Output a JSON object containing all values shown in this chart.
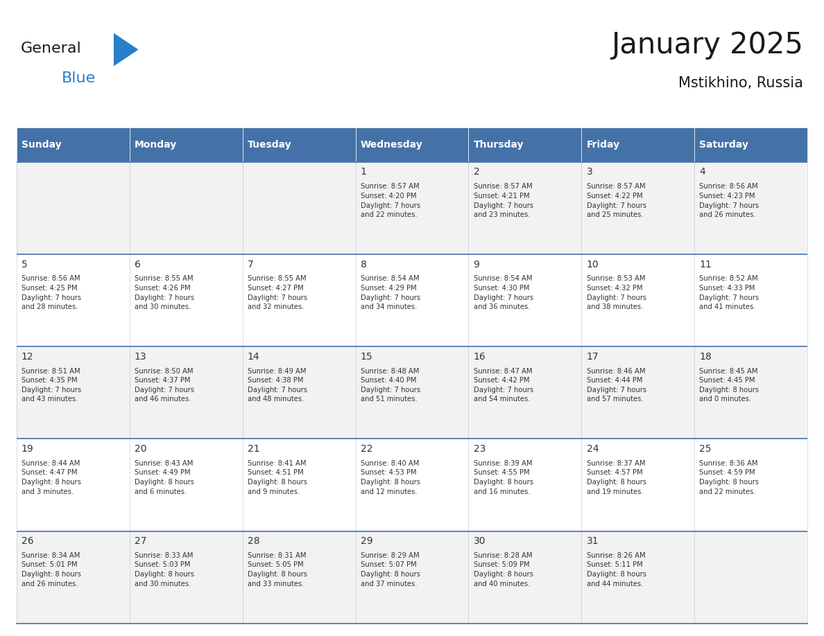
{
  "title": "January 2025",
  "subtitle": "Mstikhino, Russia",
  "days_of_week": [
    "Sunday",
    "Monday",
    "Tuesday",
    "Wednesday",
    "Thursday",
    "Friday",
    "Saturday"
  ],
  "header_bg_color": "#4472a8",
  "header_text_color": "#ffffff",
  "cell_bg_color_odd": "#f2f2f2",
  "cell_bg_color_even": "#ffffff",
  "cell_border_color": "#4472a8",
  "day_number_color": "#333333",
  "cell_text_color": "#333333",
  "title_color": "#1a1a1a",
  "subtitle_color": "#1a1a1a",
  "logo_general_color": "#1a1a1a",
  "logo_blue_color": "#2a7fc9",
  "weeks": [
    {
      "days": [
        {
          "date": null,
          "sunrise": null,
          "sunset": null,
          "daylight": null
        },
        {
          "date": null,
          "sunrise": null,
          "sunset": null,
          "daylight": null
        },
        {
          "date": null,
          "sunrise": null,
          "sunset": null,
          "daylight": null
        },
        {
          "date": 1,
          "sunrise": "8:57 AM",
          "sunset": "4:20 PM",
          "daylight": "7 hours\nand 22 minutes."
        },
        {
          "date": 2,
          "sunrise": "8:57 AM",
          "sunset": "4:21 PM",
          "daylight": "7 hours\nand 23 minutes."
        },
        {
          "date": 3,
          "sunrise": "8:57 AM",
          "sunset": "4:22 PM",
          "daylight": "7 hours\nand 25 minutes."
        },
        {
          "date": 4,
          "sunrise": "8:56 AM",
          "sunset": "4:23 PM",
          "daylight": "7 hours\nand 26 minutes."
        }
      ]
    },
    {
      "days": [
        {
          "date": 5,
          "sunrise": "8:56 AM",
          "sunset": "4:25 PM",
          "daylight": "7 hours\nand 28 minutes."
        },
        {
          "date": 6,
          "sunrise": "8:55 AM",
          "sunset": "4:26 PM",
          "daylight": "7 hours\nand 30 minutes."
        },
        {
          "date": 7,
          "sunrise": "8:55 AM",
          "sunset": "4:27 PM",
          "daylight": "7 hours\nand 32 minutes."
        },
        {
          "date": 8,
          "sunrise": "8:54 AM",
          "sunset": "4:29 PM",
          "daylight": "7 hours\nand 34 minutes."
        },
        {
          "date": 9,
          "sunrise": "8:54 AM",
          "sunset": "4:30 PM",
          "daylight": "7 hours\nand 36 minutes."
        },
        {
          "date": 10,
          "sunrise": "8:53 AM",
          "sunset": "4:32 PM",
          "daylight": "7 hours\nand 38 minutes."
        },
        {
          "date": 11,
          "sunrise": "8:52 AM",
          "sunset": "4:33 PM",
          "daylight": "7 hours\nand 41 minutes."
        }
      ]
    },
    {
      "days": [
        {
          "date": 12,
          "sunrise": "8:51 AM",
          "sunset": "4:35 PM",
          "daylight": "7 hours\nand 43 minutes."
        },
        {
          "date": 13,
          "sunrise": "8:50 AM",
          "sunset": "4:37 PM",
          "daylight": "7 hours\nand 46 minutes."
        },
        {
          "date": 14,
          "sunrise": "8:49 AM",
          "sunset": "4:38 PM",
          "daylight": "7 hours\nand 48 minutes."
        },
        {
          "date": 15,
          "sunrise": "8:48 AM",
          "sunset": "4:40 PM",
          "daylight": "7 hours\nand 51 minutes."
        },
        {
          "date": 16,
          "sunrise": "8:47 AM",
          "sunset": "4:42 PM",
          "daylight": "7 hours\nand 54 minutes."
        },
        {
          "date": 17,
          "sunrise": "8:46 AM",
          "sunset": "4:44 PM",
          "daylight": "7 hours\nand 57 minutes."
        },
        {
          "date": 18,
          "sunrise": "8:45 AM",
          "sunset": "4:45 PM",
          "daylight": "8 hours\nand 0 minutes."
        }
      ]
    },
    {
      "days": [
        {
          "date": 19,
          "sunrise": "8:44 AM",
          "sunset": "4:47 PM",
          "daylight": "8 hours\nand 3 minutes."
        },
        {
          "date": 20,
          "sunrise": "8:43 AM",
          "sunset": "4:49 PM",
          "daylight": "8 hours\nand 6 minutes."
        },
        {
          "date": 21,
          "sunrise": "8:41 AM",
          "sunset": "4:51 PM",
          "daylight": "8 hours\nand 9 minutes."
        },
        {
          "date": 22,
          "sunrise": "8:40 AM",
          "sunset": "4:53 PM",
          "daylight": "8 hours\nand 12 minutes."
        },
        {
          "date": 23,
          "sunrise": "8:39 AM",
          "sunset": "4:55 PM",
          "daylight": "8 hours\nand 16 minutes."
        },
        {
          "date": 24,
          "sunrise": "8:37 AM",
          "sunset": "4:57 PM",
          "daylight": "8 hours\nand 19 minutes."
        },
        {
          "date": 25,
          "sunrise": "8:36 AM",
          "sunset": "4:59 PM",
          "daylight": "8 hours\nand 22 minutes."
        }
      ]
    },
    {
      "days": [
        {
          "date": 26,
          "sunrise": "8:34 AM",
          "sunset": "5:01 PM",
          "daylight": "8 hours\nand 26 minutes."
        },
        {
          "date": 27,
          "sunrise": "8:33 AM",
          "sunset": "5:03 PM",
          "daylight": "8 hours\nand 30 minutes."
        },
        {
          "date": 28,
          "sunrise": "8:31 AM",
          "sunset": "5:05 PM",
          "daylight": "8 hours\nand 33 minutes."
        },
        {
          "date": 29,
          "sunrise": "8:29 AM",
          "sunset": "5:07 PM",
          "daylight": "8 hours\nand 37 minutes."
        },
        {
          "date": 30,
          "sunrise": "8:28 AM",
          "sunset": "5:09 PM",
          "daylight": "8 hours\nand 40 minutes."
        },
        {
          "date": 31,
          "sunrise": "8:26 AM",
          "sunset": "5:11 PM",
          "daylight": "8 hours\nand 44 minutes."
        },
        {
          "date": null,
          "sunrise": null,
          "sunset": null,
          "daylight": null
        }
      ]
    }
  ]
}
